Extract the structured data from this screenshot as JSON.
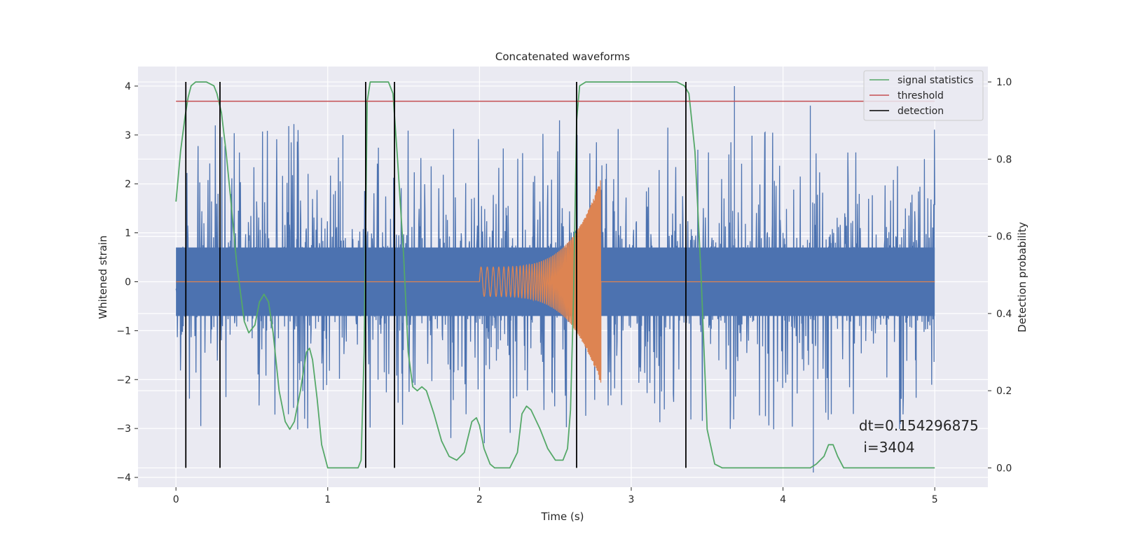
{
  "chart_data": {
    "type": "line",
    "title": "Concatenated waveforms",
    "xlabel": "Time (s)",
    "ylabel_left": "Whitened strain",
    "ylabel_right": "Detection probability",
    "xlim": [
      -0.25,
      5.35
    ],
    "ylim_left": [
      -4.2,
      4.4
    ],
    "ylim_right": [
      -0.05,
      1.04
    ],
    "x_ticks": [
      0,
      1,
      2,
      3,
      4,
      5
    ],
    "y_ticks_left": [
      -4,
      -3,
      -2,
      -1,
      0,
      1,
      2,
      3,
      4
    ],
    "y_ticks_right": [
      0.0,
      0.2,
      0.4,
      0.6,
      0.8,
      1.0
    ],
    "y_tick_labels_left": [
      "−4",
      "−3",
      "−2",
      "−1",
      "0",
      "1",
      "2",
      "3",
      "4"
    ],
    "y_tick_labels_right": [
      "0.0",
      "0.2",
      "0.4",
      "0.6",
      "0.8",
      "1.0"
    ],
    "grid": true,
    "legend_position": "top-right",
    "colors": {
      "strain": "#4c72b0",
      "injected_signal": "#dd8452",
      "signal_statistics": "#55a868",
      "threshold": "#c44e52",
      "detection": "#000000",
      "plot_background": "#eaeaf2",
      "grid": "#ffffff"
    },
    "series": [
      {
        "name": "signal statistics",
        "axis": "right",
        "x": [
          0.0,
          0.03,
          0.06,
          0.08,
          0.1,
          0.13,
          0.15,
          0.2,
          0.25,
          0.27,
          0.3,
          0.33,
          0.36,
          0.4,
          0.45,
          0.48,
          0.52,
          0.55,
          0.58,
          0.61,
          0.64,
          0.68,
          0.72,
          0.75,
          0.78,
          0.82,
          0.86,
          0.88,
          0.9,
          0.93,
          0.96,
          1.0,
          1.1,
          1.2,
          1.22,
          1.24,
          1.26,
          1.28,
          1.32,
          1.4,
          1.43,
          1.46,
          1.5,
          1.53,
          1.56,
          1.59,
          1.62,
          1.65,
          1.7,
          1.75,
          1.8,
          1.85,
          1.9,
          1.95,
          1.98,
          2.0,
          2.03,
          2.07,
          2.1,
          2.15,
          2.2,
          2.25,
          2.28,
          2.31,
          2.34,
          2.4,
          2.45,
          2.5,
          2.55,
          2.58,
          2.6,
          2.62,
          2.64,
          2.66,
          2.7,
          2.8,
          3.0,
          3.2,
          3.3,
          3.35,
          3.38,
          3.42,
          3.46,
          3.5,
          3.55,
          3.6,
          3.8,
          4.0,
          4.18,
          4.22,
          4.27,
          4.3,
          4.33,
          4.36,
          4.4,
          4.6,
          4.8,
          5.0
        ],
        "values": [
          0.69,
          0.82,
          0.91,
          0.96,
          0.99,
          1.0,
          1.0,
          1.0,
          0.99,
          0.97,
          0.92,
          0.82,
          0.7,
          0.53,
          0.38,
          0.35,
          0.37,
          0.43,
          0.45,
          0.43,
          0.35,
          0.2,
          0.12,
          0.1,
          0.12,
          0.2,
          0.3,
          0.31,
          0.28,
          0.18,
          0.06,
          0.0,
          0.0,
          0.0,
          0.02,
          0.3,
          0.95,
          1.0,
          1.0,
          1.0,
          0.97,
          0.8,
          0.55,
          0.3,
          0.21,
          0.2,
          0.21,
          0.2,
          0.14,
          0.07,
          0.03,
          0.02,
          0.04,
          0.12,
          0.13,
          0.11,
          0.05,
          0.01,
          0.0,
          0.0,
          0.0,
          0.04,
          0.14,
          0.16,
          0.15,
          0.1,
          0.05,
          0.02,
          0.02,
          0.05,
          0.15,
          0.45,
          0.9,
          0.99,
          1.0,
          1.0,
          1.0,
          1.0,
          1.0,
          0.99,
          0.97,
          0.82,
          0.5,
          0.1,
          0.01,
          0.0,
          0.0,
          0.0,
          0.0,
          0.01,
          0.03,
          0.06,
          0.06,
          0.03,
          0.0,
          0.0,
          0.0,
          0.0
        ]
      },
      {
        "name": "threshold",
        "axis": "right",
        "x": [
          0,
          5
        ],
        "values": [
          0.95,
          0.95
        ]
      },
      {
        "name": "detection",
        "axis": "right",
        "type": "vlines",
        "x": [
          0.065,
          0.29,
          1.25,
          1.44,
          2.64,
          3.36
        ],
        "range": [
          0,
          1
        ]
      },
      {
        "axis": "left",
        "description_type": "noise",
        "x_range": [
          0,
          5
        ],
        "core_amplitude": 0.7,
        "max_spike": 4.0,
        "min_spike": -3.9
      },
      {
        "axis": "left",
        "description_type": "chirp",
        "x_range": [
          2.0,
          2.8
        ],
        "start_amplitude": 0.3,
        "peak_amplitude": 2.1
      }
    ],
    "annotations": [
      {
        "text": "dt=0.154296875",
        "x": 4.5,
        "y": -3.0
      },
      {
        "text": "i=3404",
        "x": 4.53,
        "y": -3.4
      }
    ]
  }
}
